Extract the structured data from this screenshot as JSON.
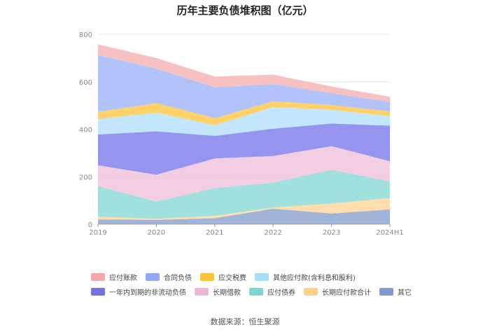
{
  "chart_data": {
    "type": "area",
    "stacked": true,
    "title": "历年主要负债堆积图（亿元）",
    "source": "数据来源：恒生聚源",
    "categories": [
      "2019",
      "2020",
      "2021",
      "2022",
      "2023",
      "2024H1"
    ],
    "ylim": [
      0,
      800
    ],
    "yticks": [
      "0",
      "200",
      "400",
      "600",
      "800"
    ],
    "grid": true,
    "legend_position": "bottom",
    "series": [
      {
        "name": "其它",
        "color": "#8fa7d3",
        "values": [
          20,
          18,
          25,
          65,
          45,
          62
        ]
      },
      {
        "name": "长期应付款合计",
        "color": "#ffd79e",
        "values": [
          12,
          5,
          10,
          5,
          42,
          48
        ]
      },
      {
        "name": "应付债券",
        "color": "#8fdcd7",
        "values": [
          128,
          72,
          117,
          105,
          142,
          70
        ]
      },
      {
        "name": "长期借款",
        "color": "#f1c6de",
        "values": [
          88,
          113,
          125,
          112,
          100,
          85
        ]
      },
      {
        "name": "一年内到期的非流动负债",
        "color": "#8282ec",
        "values": [
          130,
          183,
          95,
          115,
          95,
          150
        ]
      },
      {
        "name": "其他应付款(含利息和股利)",
        "color": "#b7e3fb",
        "values": [
          65,
          79,
          45,
          92,
          58,
          40
        ]
      },
      {
        "name": "应交税费",
        "color": "#ffca4f",
        "values": [
          30,
          40,
          30,
          24,
          20,
          20
        ]
      },
      {
        "name": "合同负债",
        "color": "#a3b8f7",
        "values": [
          240,
          145,
          130,
          72,
          50,
          40
        ]
      },
      {
        "name": "应付账款",
        "color": "#f7b6b6",
        "values": [
          45,
          45,
          45,
          40,
          28,
          22
        ]
      }
    ]
  },
  "legend_order": [
    {
      "name": "应付账款",
      "color": "#f7a5a5"
    },
    {
      "name": "合同负债",
      "color": "#92a8f5"
    },
    {
      "name": "应交税费",
      "color": "#ffc23a"
    },
    {
      "name": "其他应付款(含利息和股利)",
      "color": "#a7dcf9"
    },
    {
      "name": "一年内到期的非流动负债",
      "color": "#7373e6"
    },
    {
      "name": "长期借款",
      "color": "#ecb8d6"
    },
    {
      "name": "应付债券",
      "color": "#7dd6d0"
    },
    {
      "name": "长期应付款合计",
      "color": "#ffcf8a"
    },
    {
      "name": "其它",
      "color": "#7e9cd0"
    }
  ]
}
